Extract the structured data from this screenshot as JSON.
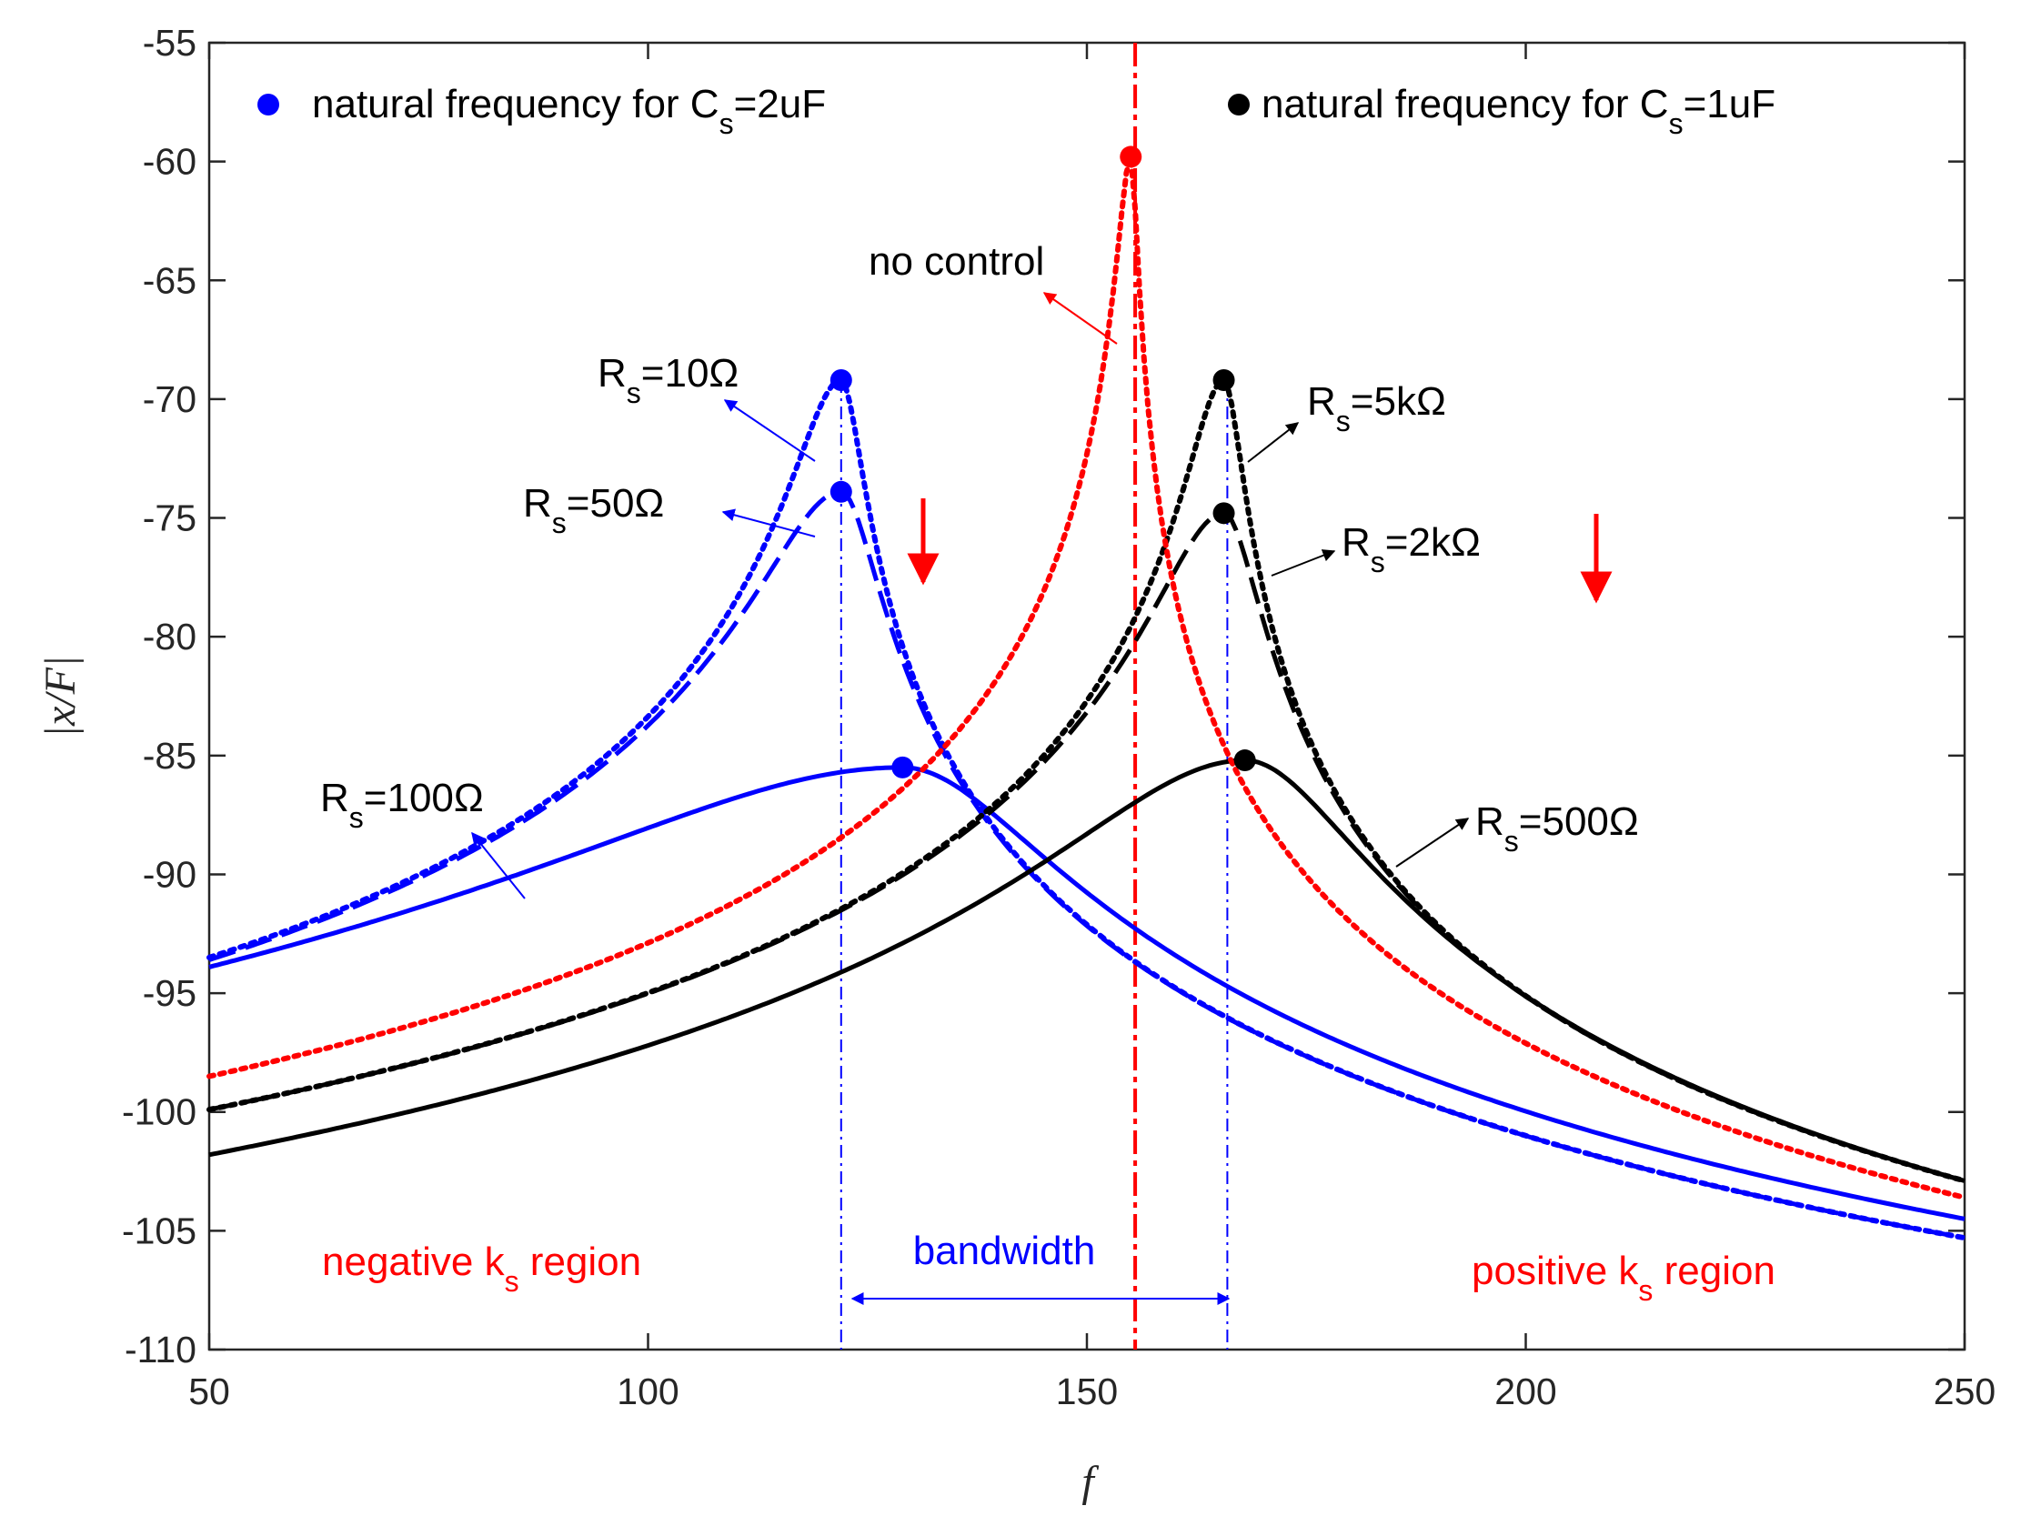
{
  "chart_data": {
    "type": "line",
    "title": "",
    "xlabel": "f",
    "ylabel": "|x/F|",
    "xlim": [
      50,
      250
    ],
    "ylim": [
      -110,
      -55
    ],
    "xticks": [
      50,
      100,
      150,
      200,
      250
    ],
    "yticks": [
      -55,
      -60,
      -65,
      -70,
      -75,
      -80,
      -85,
      -90,
      -95,
      -100,
      -105,
      -110
    ],
    "grid": false,
    "colors": {
      "blue": "#0000ff",
      "black": "#000000",
      "red": "#ff0000"
    },
    "series": [
      {
        "name": "Cs=2uF, Rs=10Ω",
        "color": "#0000ff",
        "style": "dotted",
        "f0": 122,
        "peak": -69.2,
        "at50": -93.5,
        "at250": -105.3
      },
      {
        "name": "Cs=2uF, Rs=50Ω",
        "color": "#0000ff",
        "style": "dashed",
        "f0": 122,
        "peak": -73.9,
        "at50": -93.6,
        "at250": -105.3
      },
      {
        "name": "Cs=2uF, Rs=100Ω",
        "color": "#0000ff",
        "style": "solid",
        "f0": 129,
        "peak": -85.5,
        "at50": -93.9,
        "at250": -104.5
      },
      {
        "name": "Cs=1uF, Rs=5kΩ",
        "color": "#000000",
        "style": "dotted",
        "f0": 165.6,
        "peak": -69.2,
        "at50": -99.9,
        "at250": -102.9
      },
      {
        "name": "Cs=1uF, Rs=2kΩ",
        "color": "#000000",
        "style": "dashed",
        "f0": 165.6,
        "peak": -74.8,
        "at50": -99.9,
        "at250": -102.9
      },
      {
        "name": "Cs=1uF, Rs=500Ω",
        "color": "#000000",
        "style": "solid",
        "f0": 168,
        "peak": -85.2,
        "at50": -101.8,
        "at250": -102.9
      },
      {
        "name": "no control",
        "color": "#ff0000",
        "style": "dotted",
        "f0": 155,
        "peak": -59.8,
        "at50": -98.5,
        "at250": -103.6
      }
    ],
    "markers": [
      {
        "x": 122,
        "y": -69.2,
        "color": "#0000ff"
      },
      {
        "x": 122,
        "y": -73.9,
        "color": "#0000ff"
      },
      {
        "x": 129,
        "y": -85.5,
        "color": "#0000ff"
      },
      {
        "x": 165.6,
        "y": -69.2,
        "color": "#000000"
      },
      {
        "x": 165.6,
        "y": -74.8,
        "color": "#000000"
      },
      {
        "x": 168,
        "y": -85.2,
        "color": "#000000"
      },
      {
        "x": 155,
        "y": -59.8,
        "color": "#ff0000"
      }
    ],
    "vlines": [
      {
        "x": 122,
        "color": "#0000ff",
        "style": "dashdot"
      },
      {
        "x": 166,
        "color": "#0000ff",
        "style": "dashdot"
      },
      {
        "x": 155.5,
        "color": "#ff0000",
        "style": "dashdot"
      }
    ],
    "legend": [
      {
        "label": "natural frequency for C",
        "sub": "s",
        "suffix": "=2uF",
        "color": "#0000ff",
        "position": "top-left"
      },
      {
        "label": "natural frequency for C",
        "sub": "s",
        "suffix": "=1uF",
        "color": "#000000",
        "position": "top-right"
      }
    ],
    "annotations": {
      "no_control": "no control",
      "rs10": {
        "main": "R",
        "sub": "s",
        "value": "=10Ω"
      },
      "rs50": {
        "main": "R",
        "sub": "s",
        "value": "=50Ω"
      },
      "rs100": {
        "main": "R",
        "sub": "s",
        "value": "=100Ω"
      },
      "rs5k": {
        "main": "R",
        "sub": "s",
        "value": "=5kΩ"
      },
      "rs2k": {
        "main": "R",
        "sub": "s",
        "value": "=2kΩ"
      },
      "rs500": {
        "main": "R",
        "sub": "s",
        "value": "=500Ω"
      },
      "bandwidth": "bandwidth",
      "negative_region": {
        "main": "negative k",
        "sub": "s",
        "rest": " region"
      },
      "positive_region": {
        "main": "positive k",
        "sub": "s",
        "rest": " region"
      }
    }
  }
}
